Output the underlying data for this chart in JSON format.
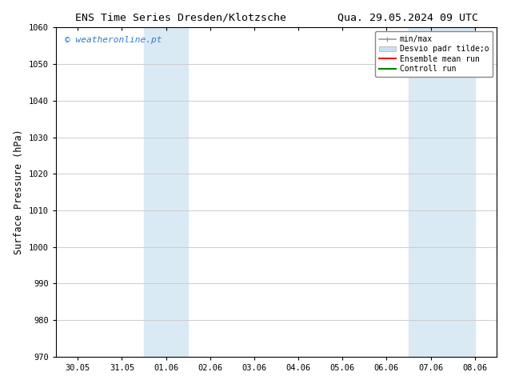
{
  "title_left": "ENS Time Series Dresden/Klotzsche",
  "title_right": "Qua. 29.05.2024 09 UTC",
  "ylabel": "Surface Pressure (hPa)",
  "ylim": [
    970,
    1060
  ],
  "yticks": [
    970,
    980,
    990,
    1000,
    1010,
    1020,
    1030,
    1040,
    1050,
    1060
  ],
  "xtick_labels": [
    "30.05",
    "31.05",
    "01.06",
    "02.06",
    "03.06",
    "04.06",
    "05.06",
    "06.06",
    "07.06",
    "08.06"
  ],
  "watermark": "© weatheronline.pt",
  "watermark_color": "#3377cc",
  "legend_entries": [
    {
      "label": "min/max",
      "color": "#999999"
    },
    {
      "label": "Desvio padr tilde;o",
      "color": "#cce0f0"
    },
    {
      "label": "Ensemble mean run",
      "color": "red"
    },
    {
      "label": "Controll run",
      "color": "green"
    }
  ],
  "shaded_regions": [
    {
      "xstart": 2,
      "xend": 3,
      "color": "#daeaf5"
    },
    {
      "xstart": 8,
      "xend": 9.5,
      "color": "#daeaf5"
    }
  ],
  "bg_color": "white",
  "grid_color": "#cccccc",
  "figwidth": 6.34,
  "figheight": 4.9,
  "dpi": 100
}
